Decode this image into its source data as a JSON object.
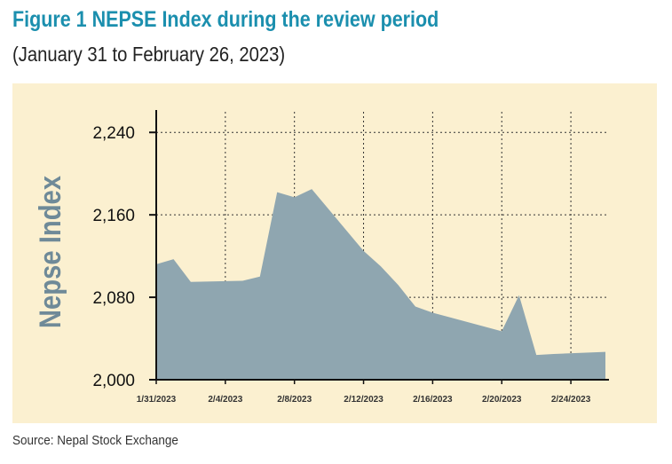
{
  "title": "Figure 1 NEPSE Index during the review period",
  "subtitle": "(January 31 to February 26, 2023)",
  "source": "Source: Nepal Stock Exchange",
  "colors": {
    "title": "#1b8fae",
    "panel_bg": "#fbf0d0",
    "area_fill": "#8fa6b0",
    "axis_label": "#6f8a98"
  },
  "chart_data": {
    "type": "area",
    "title": "NEPSE Index during the review period",
    "xlabel": "",
    "ylabel": "Nepse Index",
    "ylim": [
      2000,
      2260
    ],
    "yticks": [
      2000,
      2080,
      2160,
      2240
    ],
    "ytick_labels": [
      "2,000",
      "2,080",
      "2,160",
      "2,240"
    ],
    "xlim": [
      "1/31/2023",
      "2/26/2023"
    ],
    "xticks": [
      "1/31/2023",
      "2/4/2023",
      "2/8/2023",
      "2/12/2023",
      "2/16/2023",
      "2/20/2023",
      "2/24/2023"
    ],
    "grid": "dotted vertical and horizontal",
    "series": [
      {
        "name": "NEPSE Index",
        "x": [
          "1/31/2023",
          "2/1/2023",
          "2/2/2023",
          "2/5/2023",
          "2/6/2023",
          "2/7/2023",
          "2/8/2023",
          "2/9/2023",
          "2/12/2023",
          "2/13/2023",
          "2/14/2023",
          "2/15/2023",
          "2/16/2023",
          "2/20/2023",
          "2/21/2023",
          "2/22/2023",
          "2/23/2023",
          "2/26/2023"
        ],
        "y": [
          2112,
          2117,
          2095,
          2096,
          2100,
          2182,
          2177,
          2185,
          2125,
          2110,
          2092,
          2071,
          2065,
          2047,
          2082,
          2024,
          2025,
          2027
        ]
      }
    ]
  }
}
